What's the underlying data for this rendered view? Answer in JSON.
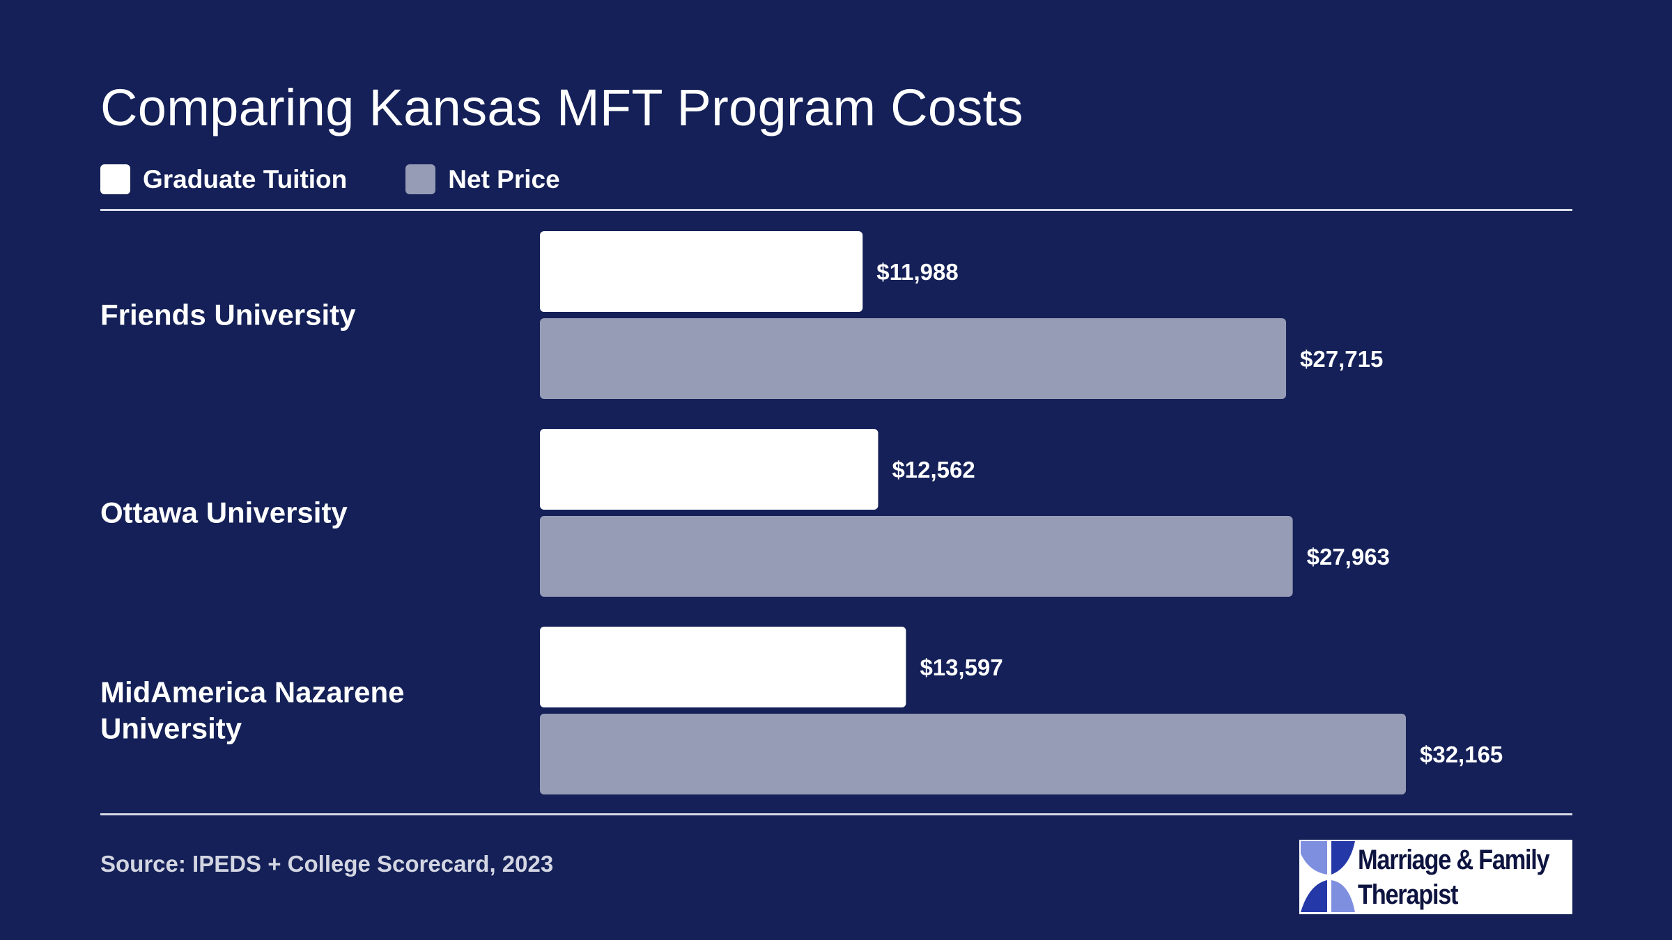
{
  "title": "Comparing Kansas MFT Program Costs",
  "legend": [
    {
      "label": "Graduate Tuition",
      "color": "#ffffff"
    },
    {
      "label": "Net Price",
      "color": "#979cb6"
    }
  ],
  "source": "Source: IPEDS + College Scorecard, 2023",
  "logo": {
    "line1": "Marriage & Family",
    "line2": "Therapist",
    "icon": "mft-logo-icon"
  },
  "colors": {
    "background": "#142057",
    "tuition": "#ffffff",
    "net_price": "#979cb6",
    "text": "#ffffff"
  },
  "chart_data": {
    "type": "bar",
    "orientation": "horizontal",
    "title": "Comparing Kansas MFT Program Costs",
    "categories": [
      [
        "Friends University"
      ],
      [
        "Ottawa University"
      ],
      [
        "MidAmerica Nazarene",
        "University"
      ]
    ],
    "series": [
      {
        "name": "Graduate Tuition",
        "values": [
          11988,
          12562,
          13597
        ],
        "labels": [
          "$11,988",
          "$12,562",
          "$13,597"
        ],
        "color": "#ffffff"
      },
      {
        "name": "Net Price",
        "values": [
          27715,
          27963,
          32165
        ],
        "labels": [
          "$27,715",
          "$27,963",
          "$32,165"
        ],
        "color": "#979cb6"
      }
    ],
    "legend": "top-left",
    "grid": false
  }
}
